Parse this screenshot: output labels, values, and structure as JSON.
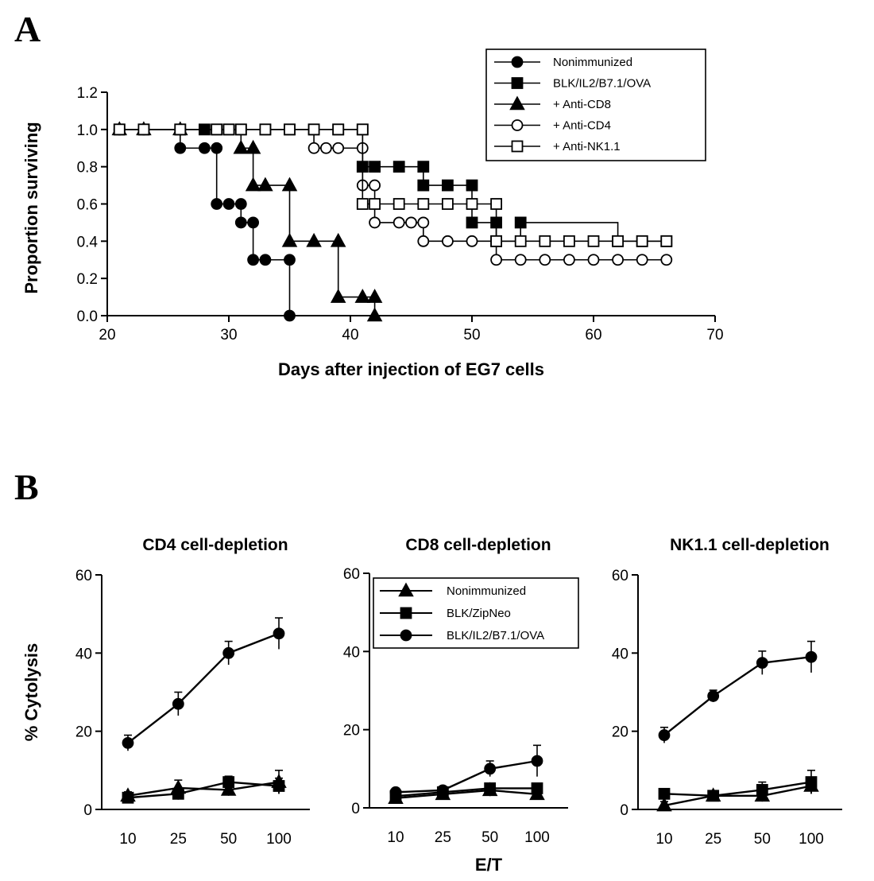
{
  "panel_a_label": "A",
  "panel_b_label": "B",
  "chart_data": [
    {
      "type": "line",
      "subtype": "step",
      "title": "",
      "xlabel": "Days after injection of EG7 cells",
      "ylabel": "Proportion surviving",
      "xlim": [
        20,
        70
      ],
      "ylim": [
        0,
        1.2
      ],
      "xticks": [
        "20",
        "30",
        "40",
        "50",
        "60",
        "70"
      ],
      "yticks": [
        "0.0",
        "0.2",
        "0.4",
        "0.6",
        "0.8",
        "1.0",
        "1.2"
      ],
      "legend_position": "top-right",
      "series": [
        {
          "name": "Nonimmunized",
          "marker": "circle",
          "filled": true,
          "x": [
            21,
            23,
            26,
            28,
            29,
            29,
            30,
            31,
            31,
            32,
            32,
            33,
            35,
            35
          ],
          "y": [
            1.0,
            1.0,
            0.9,
            0.9,
            0.9,
            0.6,
            0.6,
            0.6,
            0.5,
            0.5,
            0.3,
            0.3,
            0.3,
            0.0
          ]
        },
        {
          "name": "BLK/IL2/B7.1/OVA",
          "marker": "square",
          "filled": true,
          "x": [
            21,
            23,
            26,
            28,
            29,
            30,
            31,
            33,
            35,
            37,
            39,
            41,
            41,
            42,
            44,
            46,
            46,
            48,
            50,
            50,
            52,
            52,
            54,
            62,
            64,
            66
          ],
          "y": [
            1.0,
            1.0,
            1.0,
            1.0,
            1.0,
            1.0,
            1.0,
            1.0,
            1.0,
            1.0,
            1.0,
            1.0,
            0.8,
            0.8,
            0.8,
            0.8,
            0.7,
            0.7,
            0.7,
            0.5,
            0.5,
            0.4,
            0.5,
            0.4,
            0.4,
            0.4
          ]
        },
        {
          "name": "+ Anti-CD8",
          "marker": "triangle",
          "filled": true,
          "x": [
            21,
            23,
            26,
            31,
            32,
            32,
            33,
            35,
            35,
            37,
            39,
            39,
            41,
            42,
            42
          ],
          "y": [
            1.0,
            1.0,
            1.0,
            0.9,
            0.9,
            0.7,
            0.7,
            0.7,
            0.4,
            0.4,
            0.4,
            0.1,
            0.1,
            0.1,
            0.0
          ]
        },
        {
          "name": "+ Anti-CD4",
          "marker": "circle",
          "filled": false,
          "x": [
            21,
            23,
            26,
            37,
            38,
            39,
            41,
            41,
            42,
            42,
            44,
            45,
            46,
            46,
            48,
            50,
            52,
            54,
            56,
            58,
            60,
            62,
            64,
            66
          ],
          "y": [
            1.0,
            1.0,
            1.0,
            0.9,
            0.9,
            0.9,
            0.9,
            0.7,
            0.7,
            0.5,
            0.5,
            0.5,
            0.5,
            0.4,
            0.4,
            0.4,
            0.3,
            0.3,
            0.3,
            0.3,
            0.3,
            0.3,
            0.3,
            0.3
          ]
        },
        {
          "name": "+ Anti-NK1.1",
          "marker": "square",
          "filled": false,
          "x": [
            21,
            23,
            26,
            29,
            30,
            31,
            33,
            35,
            37,
            39,
            41,
            41,
            42,
            44,
            46,
            48,
            50,
            52,
            52,
            54,
            56,
            58,
            60,
            62,
            64,
            66
          ],
          "y": [
            1.0,
            1.0,
            1.0,
            1.0,
            1.0,
            1.0,
            1.0,
            1.0,
            1.0,
            1.0,
            1.0,
            0.6,
            0.6,
            0.6,
            0.6,
            0.6,
            0.6,
            0.6,
            0.4,
            0.4,
            0.4,
            0.4,
            0.4,
            0.4,
            0.4,
            0.4
          ]
        }
      ]
    },
    {
      "type": "line",
      "title": "CD4 cell-depletion",
      "xlabel": "E/T",
      "ylabel": "% Cytolysis",
      "categories": [
        "10",
        "25",
        "50",
        "100"
      ],
      "ylim": [
        0,
        60
      ],
      "yticks": [
        "0",
        "20",
        "40",
        "60"
      ],
      "series": [
        {
          "name": "Nonimmunized",
          "marker": "triangle",
          "values": [
            3.5,
            5.5,
            5,
            7
          ],
          "errors": [
            1,
            2,
            1.5,
            3
          ]
        },
        {
          "name": "BLK/ZipNeo",
          "marker": "square",
          "values": [
            3,
            4,
            7,
            6
          ],
          "errors": [
            1,
            1.5,
            1.5,
            2
          ]
        },
        {
          "name": "BLK/IL2/B7.1/OVA",
          "marker": "circle",
          "values": [
            17,
            27,
            40,
            45
          ],
          "errors": [
            2,
            3,
            3,
            4
          ]
        }
      ]
    },
    {
      "type": "line",
      "title": "CD8 cell-depletion",
      "xlabel": "E/T",
      "ylabel": "% Cytolysis",
      "categories": [
        "10",
        "25",
        "50",
        "100"
      ],
      "ylim": [
        0,
        60
      ],
      "yticks": [
        "0",
        "20",
        "40",
        "60"
      ],
      "legend_position": "top",
      "series": [
        {
          "name": "Nonimmunized",
          "marker": "triangle",
          "values": [
            2.5,
            3.5,
            4.5,
            3.5
          ],
          "errors": [
            1,
            1,
            1.5,
            1
          ]
        },
        {
          "name": "BLK/ZipNeo",
          "marker": "square",
          "values": [
            3,
            4,
            5,
            5
          ],
          "errors": [
            1,
            1,
            1,
            1
          ]
        },
        {
          "name": "BLK/IL2/B7.1/OVA",
          "marker": "circle",
          "values": [
            4,
            4.5,
            10,
            12
          ],
          "errors": [
            1,
            1,
            2,
            4
          ]
        }
      ]
    },
    {
      "type": "line",
      "title": "NK1.1 cell-depletion",
      "xlabel": "E/T",
      "ylabel": "% Cytolysis",
      "categories": [
        "10",
        "25",
        "50",
        "100"
      ],
      "ylim": [
        0,
        60
      ],
      "yticks": [
        "0",
        "20",
        "40",
        "60"
      ],
      "series": [
        {
          "name": "Nonimmunized",
          "marker": "triangle",
          "values": [
            1,
            3.5,
            3.5,
            6
          ],
          "errors": [
            1,
            1,
            1.5,
            2
          ]
        },
        {
          "name": "BLK/ZipNeo",
          "marker": "square",
          "values": [
            4,
            3.5,
            5,
            7
          ],
          "errors": [
            1,
            1,
            2,
            3
          ]
        },
        {
          "name": "BLK/IL2/B7.1/OVA",
          "marker": "circle",
          "values": [
            19,
            29,
            37.5,
            39
          ],
          "errors": [
            2,
            1.5,
            3,
            4
          ]
        }
      ]
    }
  ]
}
